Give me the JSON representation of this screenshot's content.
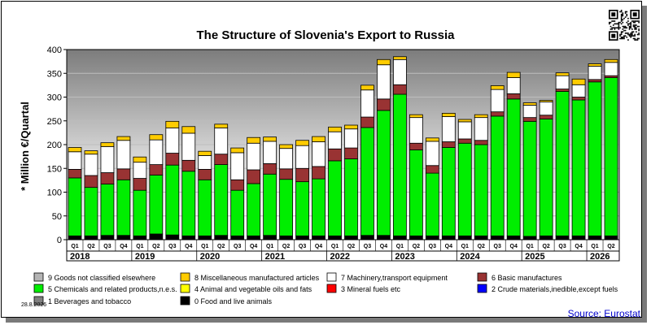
{
  "chart_data": {
    "type": "bar",
    "stacked": true,
    "title": "The Structure of Slovenia's Export to Russia",
    "ylabel": "* Million €/Quartal",
    "xlabel": "",
    "ylim": [
      0,
      400
    ],
    "yticks": [
      0,
      50,
      100,
      150,
      200,
      250,
      300,
      350,
      400
    ],
    "grid": true,
    "legend_position": "bottom",
    "categories": [
      "Q1",
      "Q2",
      "Q3",
      "Q4",
      "Q1",
      "Q2",
      "Q3",
      "Q4",
      "Q1",
      "Q2",
      "Q3",
      "Q4",
      "Q1",
      "Q2",
      "Q3",
      "Q4",
      "Q1",
      "Q2",
      "Q3",
      "Q4",
      "Q1",
      "Q2",
      "Q3",
      "Q4",
      "Q1",
      "Q2",
      "Q3",
      "Q4",
      "Q1",
      "Q2",
      "Q3",
      "Q4",
      "Q1",
      "Q2"
    ],
    "years": [
      {
        "label": "2018",
        "start": 0,
        "count": 4
      },
      {
        "label": "2019",
        "start": 4,
        "count": 4
      },
      {
        "label": "2020",
        "start": 8,
        "count": 4
      },
      {
        "label": "2021",
        "start": 12,
        "count": 4
      },
      {
        "label": "2022",
        "start": 16,
        "count": 4
      },
      {
        "label": "2023",
        "start": 20,
        "count": 4
      },
      {
        "label": "2024",
        "start": 24,
        "count": 4
      },
      {
        "label": "2025",
        "start": 28,
        "count": 4
      },
      {
        "label": "2026",
        "start": 32,
        "count": 2
      }
    ],
    "series": [
      {
        "name": "0 Food and live animals",
        "color": "#000000",
        "values": [
          8,
          8,
          9,
          9,
          8,
          12,
          10,
          8,
          8,
          9,
          8,
          8,
          9,
          8,
          8,
          8,
          8,
          8,
          9,
          9,
          8,
          8,
          8,
          8,
          8,
          8,
          8,
          8,
          7,
          8,
          8,
          8,
          8,
          8
        ]
      },
      {
        "name": "1 Beverages and tobacco",
        "color": "#808080",
        "values": [
          0,
          0,
          0,
          0,
          0,
          0,
          0,
          0,
          0,
          0,
          0,
          0,
          0,
          0,
          0,
          0,
          0,
          0,
          0,
          0,
          0,
          0,
          0,
          0,
          0,
          0,
          0,
          0,
          0,
          0,
          0,
          0,
          0,
          0
        ]
      },
      {
        "name": "2 Crude materials,inedible,except fuels",
        "color": "#0000ff",
        "values": [
          0,
          0,
          0,
          0,
          0,
          0,
          0,
          0,
          0,
          0,
          0,
          0,
          0,
          0,
          0,
          0,
          0,
          0,
          0,
          0,
          0,
          0,
          0,
          0,
          0,
          0,
          0,
          0,
          0,
          0,
          0,
          0,
          0,
          0
        ]
      },
      {
        "name": "3 Mineral fuels etc",
        "color": "#ff0000",
        "values": [
          0,
          0,
          0,
          0,
          0,
          0,
          0,
          0,
          0,
          0,
          0,
          0,
          0,
          0,
          0,
          0,
          0,
          0,
          0,
          0,
          0,
          0,
          0,
          0,
          0,
          0,
          0,
          0,
          0,
          0,
          0,
          0,
          0,
          0
        ]
      },
      {
        "name": "4 Animal and vegetable oils and fats",
        "color": "#ffff00",
        "values": [
          0,
          0,
          0,
          0,
          0,
          0,
          0,
          0,
          0,
          0,
          0,
          0,
          0,
          0,
          0,
          0,
          0,
          0,
          0,
          0,
          0,
          0,
          0,
          0,
          0,
          0,
          0,
          0,
          0,
          0,
          0,
          0,
          0,
          0
        ]
      },
      {
        "name": "5 Chemicals and related products,n.e.s.",
        "color": "#00ee00",
        "values": [
          122,
          102,
          108,
          117,
          96,
          124,
          147,
          136,
          118,
          149,
          96,
          110,
          129,
          119,
          114,
          120,
          158,
          162,
          227,
          263,
          298,
          181,
          132,
          186,
          195,
          192,
          252,
          288,
          242,
          246,
          304,
          286,
          324,
          333
        ]
      },
      {
        "name": "6 Basic manufactures",
        "color": "#993333",
        "values": [
          18,
          25,
          24,
          23,
          25,
          22,
          25,
          23,
          22,
          22,
          22,
          29,
          22,
          22,
          28,
          26,
          25,
          23,
          22,
          24,
          20,
          14,
          16,
          12,
          9,
          9,
          9,
          11,
          8,
          8,
          5,
          6,
          5,
          4
        ]
      },
      {
        "name": "7 Machinery,transport equipment",
        "color": "#ffffff",
        "values": [
          37,
          45,
          55,
          60,
          34,
          52,
          53,
          57,
          29,
          55,
          57,
          56,
          47,
          43,
          48,
          52,
          36,
          40,
          57,
          72,
          53,
          54,
          51,
          53,
          36,
          48,
          47,
          34,
          26,
          28,
          28,
          26,
          28,
          28
        ]
      },
      {
        "name": "8 Miscellaneous manufactured articles",
        "color": "#ffcc00",
        "values": [
          9,
          7,
          8,
          8,
          11,
          11,
          14,
          14,
          9,
          8,
          10,
          12,
          9,
          8,
          11,
          11,
          10,
          8,
          10,
          11,
          6,
          6,
          7,
          7,
          5,
          6,
          8,
          11,
          5,
          3,
          6,
          12,
          5,
          6
        ]
      },
      {
        "name": "9 Goods not classified elsewhere",
        "color": "#b4b4b4",
        "values": [
          0,
          0,
          0,
          0,
          0,
          0,
          0,
          0,
          0,
          0,
          0,
          0,
          0,
          0,
          0,
          0,
          0,
          0,
          0,
          0,
          0,
          0,
          0,
          0,
          0,
          0,
          0,
          0,
          0,
          0,
          0,
          0,
          0,
          0
        ]
      }
    ],
    "legend_order": [
      9,
      8,
      7,
      6,
      5,
      4,
      3,
      2,
      1,
      0
    ],
    "date": "28.8.2026",
    "source": "Source: Eurostat"
  }
}
